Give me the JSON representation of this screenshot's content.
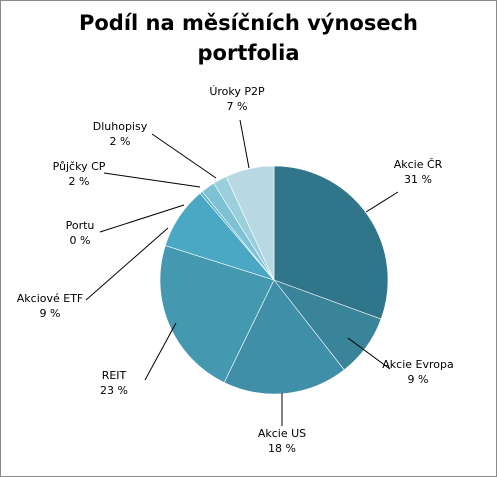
{
  "chart_data": {
    "type": "pie",
    "title": [
      "Podíl na měsíčních výnosech",
      "portfolia"
    ],
    "slices": [
      {
        "name": "Akcie ČR",
        "value": 31,
        "label": "31 %",
        "color": "#30758a"
      },
      {
        "name": "Akcie Evropa",
        "value": 9,
        "label": "9 %",
        "color": "#3a8499"
      },
      {
        "name": "Akcie US",
        "value": 18,
        "label": "18 %",
        "color": "#3f8fa8"
      },
      {
        "name": "REIT",
        "value": 23,
        "label": "23 %",
        "color": "#4499b1"
      },
      {
        "name": "Akciové ETF",
        "value": 9,
        "label": "9 %",
        "color": "#4aa8c4"
      },
      {
        "name": "Portu",
        "value": 0.4,
        "label": "0 %",
        "color": "#5bb3cc"
      },
      {
        "name": "Půjčky CP",
        "value": 2,
        "label": "2 %",
        "color": "#7dc1d4"
      },
      {
        "name": "Dluhopisy",
        "value": 2,
        "label": "2 %",
        "color": "#9ccfdc"
      },
      {
        "name": "Úroky P2P",
        "value": 7,
        "label": "7 %",
        "color": "#b8d9e3"
      }
    ],
    "legend": "none"
  }
}
